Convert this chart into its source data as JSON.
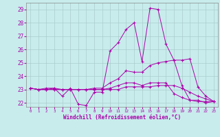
{
  "xlabel": "Windchill (Refroidissement éolien,°C)",
  "background_color": "#c8ecec",
  "grid_color": "#aacccc",
  "line_color": "#aa00aa",
  "xlim": [
    -0.5,
    23.5
  ],
  "ylim": [
    21.7,
    29.5
  ],
  "xticks": [
    0,
    1,
    2,
    3,
    4,
    5,
    6,
    7,
    8,
    9,
    10,
    11,
    12,
    13,
    14,
    15,
    16,
    17,
    18,
    19,
    20,
    21,
    22,
    23
  ],
  "yticks": [
    22,
    23,
    24,
    25,
    26,
    27,
    28,
    29
  ],
  "series": [
    {
      "x": [
        0,
        1,
        2,
        3,
        4,
        5,
        6,
        7,
        8,
        9,
        10,
        11,
        12,
        13,
        14,
        15,
        16,
        17,
        18,
        19,
        20,
        21,
        22,
        23
      ],
      "y": [
        23.1,
        23.0,
        23.1,
        23.1,
        22.5,
        23.1,
        21.9,
        21.8,
        22.8,
        22.8,
        25.9,
        26.5,
        27.5,
        28.0,
        25.1,
        29.1,
        29.0,
        26.4,
        25.2,
        23.3,
        22.2,
        22.2,
        22.0,
        22.1
      ]
    },
    {
      "x": [
        0,
        1,
        2,
        3,
        4,
        5,
        6,
        7,
        8,
        9,
        10,
        11,
        12,
        13,
        14,
        15,
        16,
        17,
        18,
        19,
        20,
        21,
        22,
        23
      ],
      "y": [
        23.1,
        23.0,
        23.0,
        23.1,
        23.0,
        23.0,
        23.0,
        23.0,
        23.1,
        23.1,
        23.5,
        23.8,
        24.4,
        24.3,
        24.3,
        24.8,
        25.0,
        25.1,
        25.2,
        25.2,
        25.3,
        23.2,
        22.5,
        22.1
      ]
    },
    {
      "x": [
        0,
        1,
        2,
        3,
        4,
        5,
        6,
        7,
        8,
        9,
        10,
        11,
        12,
        13,
        14,
        15,
        16,
        17,
        18,
        19,
        20,
        21,
        22,
        23
      ],
      "y": [
        23.1,
        23.0,
        23.0,
        23.0,
        23.0,
        23.0,
        23.0,
        23.0,
        23.0,
        23.0,
        23.1,
        23.3,
        23.5,
        23.5,
        23.3,
        23.5,
        23.5,
        23.5,
        22.7,
        22.4,
        22.2,
        22.1,
        22.1,
        22.1
      ]
    },
    {
      "x": [
        0,
        1,
        2,
        3,
        4,
        5,
        6,
        7,
        8,
        9,
        10,
        11,
        12,
        13,
        14,
        15,
        16,
        17,
        18,
        19,
        20,
        21,
        22,
        23
      ],
      "y": [
        23.1,
        23.0,
        23.0,
        23.0,
        23.0,
        23.0,
        23.0,
        23.0,
        23.0,
        23.0,
        23.0,
        23.0,
        23.2,
        23.2,
        23.2,
        23.2,
        23.3,
        23.3,
        23.3,
        23.1,
        22.8,
        22.5,
        22.3,
        22.1
      ]
    }
  ]
}
